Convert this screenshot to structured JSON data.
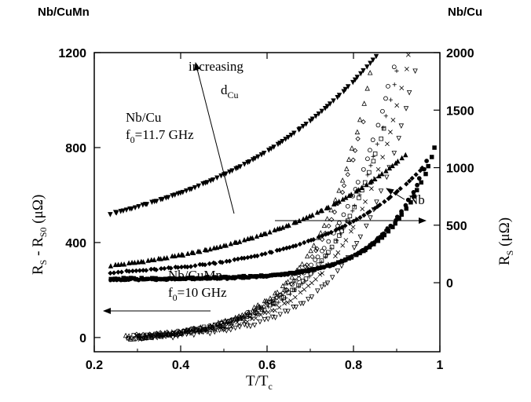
{
  "chart_data": {
    "type": "scatter",
    "corner_labels": {
      "top_left": "Nb/CuMn",
      "top_right": "Nb/Cu"
    },
    "xlabel": {
      "main": "T/T",
      "sub": "c"
    },
    "ylabel_left": {
      "r": "R",
      "s": "S",
      "mid": " - R",
      "s0": "S0",
      "unit": " (μΩ)"
    },
    "ylabel_right": {
      "r": "R",
      "s": "S",
      "unit": " (μΩ)"
    },
    "xlim": [
      0.2,
      1.0
    ],
    "ylim_left": [
      -60,
      1200
    ],
    "ylim_right": [
      -600,
      2000
    ],
    "x_ticks": [
      0.2,
      0.4,
      0.6,
      0.8,
      1
    ],
    "x_tick_labels": [
      "0.2",
      "0.4",
      "0.6",
      "0.8",
      "1"
    ],
    "y_left_ticks": [
      0,
      400,
      800,
      1200
    ],
    "y_left_tick_labels": [
      "0",
      "400",
      "800",
      "1200"
    ],
    "y_right_ticks": [
      0,
      500,
      1000,
      1500,
      2000
    ],
    "y_right_tick_labels": [
      "0",
      "500",
      "1000",
      "1500",
      "2000"
    ],
    "annotations": {
      "increasing": "increasing",
      "dcu_d": "d",
      "dcu_sub": "Cu",
      "nbcu_title": "Nb/Cu",
      "nbcu_f": "f",
      "nbcu_f_sub": "0",
      "nbcu_f_val": "=11.7 GHz",
      "nbcumn_title": "Nb/CuMn",
      "nbcumn_f": "f",
      "nbcumn_f_sub": "0",
      "nbcumn_f_val": "=10 GHz",
      "nb": "Nb"
    },
    "series": [
      {
        "axis": "right",
        "marker": "tri-down-filled",
        "x_range": [
          0.24,
          0.86
        ],
        "y_start": 600,
        "y_end": 2000,
        "curvature": 1.6
      },
      {
        "axis": "right",
        "marker": "tri-up-filled",
        "x_range": [
          0.24,
          0.92
        ],
        "y_start": 150,
        "y_end": 1110,
        "curvature": 2.0
      },
      {
        "axis": "right",
        "marker": "diamond-filled",
        "x_range": [
          0.24,
          0.96
        ],
        "y_start": 90,
        "y_end": 1000,
        "curvature": 3.0
      },
      {
        "axis": "right",
        "marker": "square-filled",
        "x_range": [
          0.24,
          0.99
        ],
        "y_start": 35,
        "y_end": 1180,
        "curvature": 7.0
      },
      {
        "axis": "right",
        "marker": "circle-filled",
        "x_range": [
          0.24,
          0.97
        ],
        "y_start": 30,
        "y_end": 1060,
        "curvature": 7.0
      },
      {
        "axis": "right",
        "marker": "dot-filled",
        "x_range": [
          0.24,
          0.88
        ],
        "y_start": 25,
        "y_end": 480,
        "curvature": 6.0
      },
      {
        "axis": "left",
        "marker": "tri-up-open",
        "x_range": [
          0.27,
          0.84
        ],
        "y_start": 0,
        "y_end": 1120,
        "curvature": 4.5
      },
      {
        "axis": "left",
        "marker": "diamond-open",
        "x_range": [
          0.28,
          0.82
        ],
        "y_start": 5,
        "y_end": 900,
        "curvature": 4.5
      },
      {
        "axis": "left",
        "marker": "square-open",
        "x_range": [
          0.28,
          0.87
        ],
        "y_start": 0,
        "y_end": 880,
        "curvature": 4.0
      },
      {
        "axis": "left",
        "marker": "circle-open",
        "x_range": [
          0.3,
          0.9
        ],
        "y_start": 0,
        "y_end": 1200,
        "curvature": 4.0
      },
      {
        "axis": "left",
        "marker": "tri-down-open",
        "x_range": [
          0.3,
          0.95
        ],
        "y_start": 0,
        "y_end": 1200,
        "curvature": 5.0
      },
      {
        "axis": "left",
        "marker": "cross",
        "x_range": [
          0.3,
          0.93
        ],
        "y_start": 0,
        "y_end": 1200,
        "curvature": 4.5
      },
      {
        "axis": "left",
        "marker": "plus",
        "x_range": [
          0.3,
          0.91
        ],
        "y_start": 0,
        "y_end": 1200,
        "curvature": 4.3
      }
    ]
  }
}
